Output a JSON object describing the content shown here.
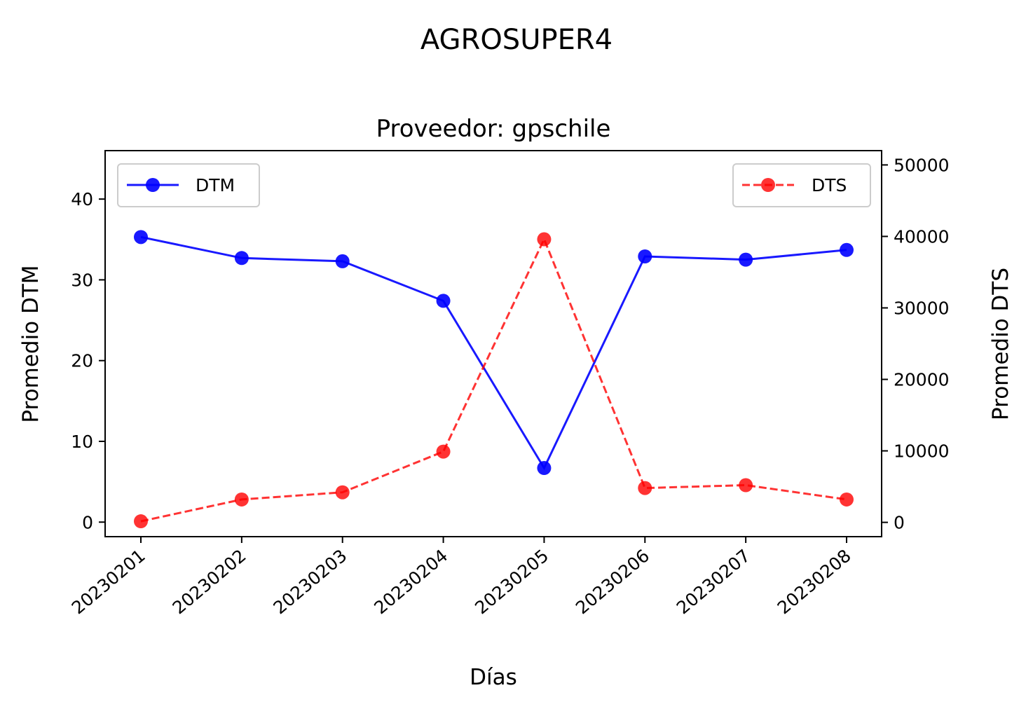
{
  "chart_data": {
    "type": "line",
    "suptitle": "AGROSUPER4",
    "title": "Proveedor: gpschile",
    "xlabel": "Días",
    "ylabel_left": "Promedio DTM",
    "ylabel_right": "Promedio DTS",
    "categories": [
      "20230201",
      "20230202",
      "20230203",
      "20230204",
      "20230205",
      "20230206",
      "20230207",
      "20230208"
    ],
    "ylim_left": [
      -1.8,
      46
    ],
    "ylim_right": [
      -2000,
      52000
    ],
    "yticks_left": [
      0,
      10,
      20,
      30,
      40
    ],
    "yticks_right": [
      0,
      10000,
      20000,
      30000,
      40000,
      50000
    ],
    "grid": false,
    "series": [
      {
        "name": "DTM",
        "axis": "left",
        "color": "#0000ff",
        "linestyle": "solid",
        "marker": "circle",
        "legend_position": "upper-left",
        "values": [
          35.3,
          32.7,
          32.3,
          27.4,
          6.7,
          32.9,
          32.5,
          33.7
        ]
      },
      {
        "name": "DTS",
        "axis": "right",
        "color": "#ff0000",
        "linestyle": "dashed",
        "marker": "circle",
        "legend_position": "upper-right",
        "values": [
          150,
          3200,
          4200,
          9900,
          39600,
          4800,
          5200,
          3200
        ]
      }
    ]
  }
}
